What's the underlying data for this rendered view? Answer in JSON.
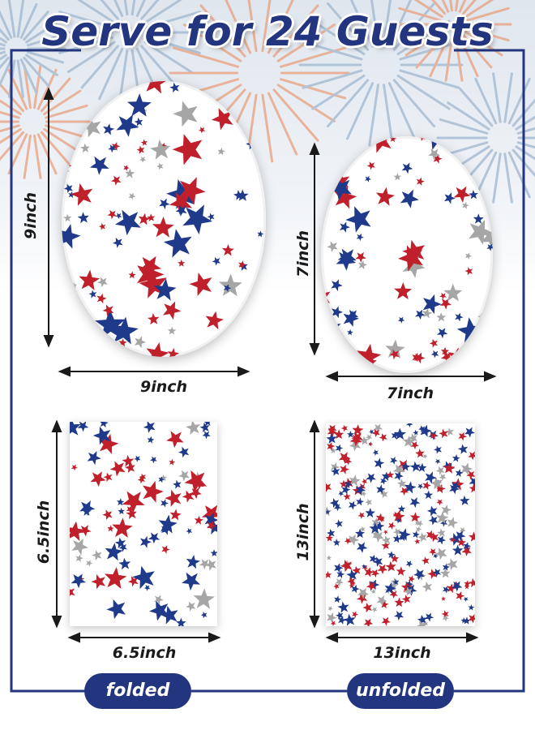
{
  "title": "Serve for 24 Guests",
  "colors": {
    "navy": "#23357f",
    "star_red": "#c0202b",
    "star_blue": "#1f3a8a",
    "star_gray": "#a6a6a6",
    "firework_orange": "#e9a07e",
    "firework_blue": "#9fb7cf"
  },
  "large_plate": {
    "width_label": "9inch",
    "height_label": "9inch"
  },
  "small_plate": {
    "width_label": "7inch",
    "height_label": "7inch"
  },
  "folded_napkin": {
    "width_label": "6.5inch",
    "height_label": "6.5inch",
    "badge": "folded"
  },
  "unfolded_napkin": {
    "width_label": "13inch",
    "height_label": "13inch",
    "badge": "unfolded"
  }
}
